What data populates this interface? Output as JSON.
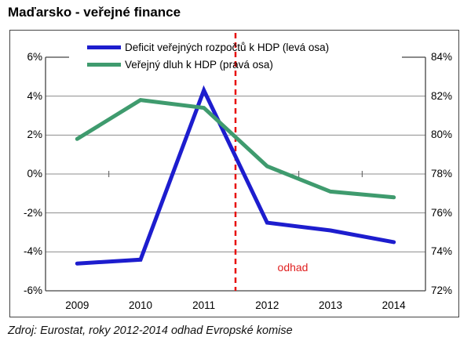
{
  "title": "Maďarsko - veřejné finance",
  "footer": "Zdroj: Eurostat, roky 2012-2014 odhad Evropské komise",
  "annotation": {
    "label": "odhad",
    "color": "#e02020"
  },
  "legend": [
    {
      "label": "Deficit veřejných rozpočtů k HDP (levá osa)",
      "color": "#1d1dce"
    },
    {
      "label": "Veřejný dluh k HDP (pravá osa)",
      "color": "#3f9b6e"
    }
  ],
  "chart_data": {
    "type": "line",
    "categories": [
      "2009",
      "2010",
      "2011",
      "2012",
      "2013",
      "2014"
    ],
    "series": [
      {
        "name": "Deficit veřejných rozpočtů k HDP (levá osa)",
        "axis": "left",
        "color": "#1d1dce",
        "values": [
          -4.6,
          -4.4,
          4.3,
          -2.5,
          -2.9,
          -3.5
        ]
      },
      {
        "name": "Veřejný dluh k HDP (pravá osa)",
        "axis": "right",
        "color": "#3f9b6e",
        "values": [
          79.8,
          81.8,
          81.4,
          78.4,
          77.1,
          76.8
        ]
      }
    ],
    "left_axis": {
      "min": -6,
      "max": 6,
      "step": 2,
      "ticks": [
        "6%",
        "4%",
        "2%",
        "0%",
        "-2%",
        "-4%",
        "-6%"
      ]
    },
    "right_axis": {
      "min": 72,
      "max": 84,
      "step": 2,
      "ticks": [
        "84%",
        "82%",
        "80%",
        "78%",
        "76%",
        "74%",
        "72%"
      ]
    },
    "estimate_divider": {
      "x": 2011.5,
      "color": "#e8100f",
      "style": "dashed"
    },
    "grid": true,
    "gridline_color": "#8c8c8c",
    "axis_color": "#444444"
  }
}
